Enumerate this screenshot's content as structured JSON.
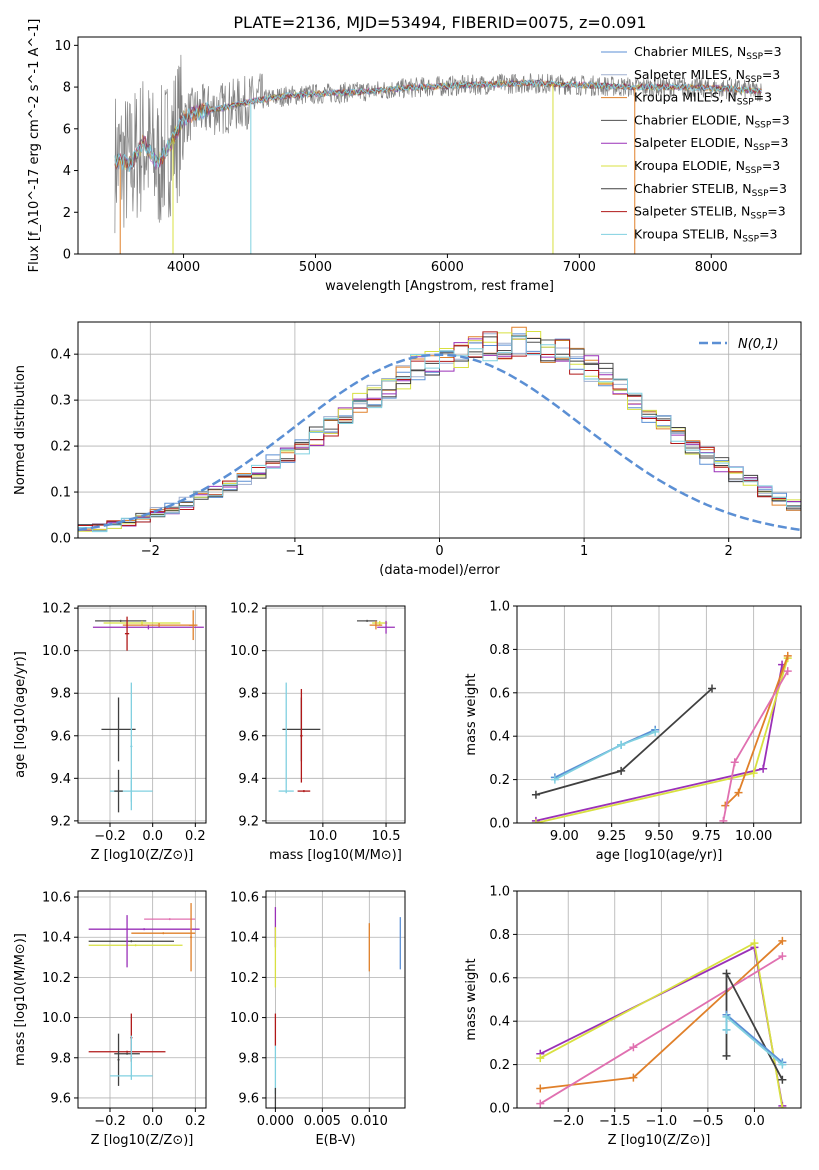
{
  "figure": {
    "title": "PLATE=2136, MJD=53494, FIBERID=0075, z=0.091"
  },
  "chart_data": [
    {
      "id": "spectrum",
      "type": "line",
      "xlabel": "wavelength [Angstrom, rest frame]",
      "ylabel": "Flux [f_λ10^-17 erg cm^-2 s^-1 A^-1]",
      "xlim": [
        3200,
        8680
      ],
      "ylim": [
        0,
        10.4
      ],
      "xticks": [
        4000,
        5000,
        6000,
        7000,
        8000
      ],
      "yticks": [
        0,
        2,
        4,
        6,
        8,
        10
      ],
      "grid": false,
      "legend_position": "right",
      "data_profile": {
        "x": [
          3480,
          3600,
          3700,
          3800,
          3900,
          4000,
          4100,
          4300,
          4500,
          4800,
          5100,
          5400,
          5800,
          6200,
          6600,
          7000,
          7400,
          7800,
          8200,
          8380
        ],
        "y": [
          4.5,
          4.3,
          5.4,
          4.3,
          5.3,
          6.5,
          6.8,
          7.0,
          7.3,
          7.6,
          7.7,
          7.8,
          8.0,
          8.1,
          8.2,
          8.1,
          8.0,
          8.0,
          7.9,
          7.8
        ]
      },
      "series": [
        {
          "name": "Chabrier MILES",
          "sub": "SSP",
          "suffix": "=3",
          "color": "#5b8fd4"
        },
        {
          "name": "Salpeter MILES",
          "sub": "SSP",
          "suffix": "=3",
          "color": "#a0b0d0"
        },
        {
          "name": "Kroupa MILES",
          "sub": "SSP",
          "suffix": "=3",
          "color": "#e0802a"
        },
        {
          "name": "Chabrier ELODIE",
          "sub": "SSP",
          "suffix": "=3",
          "color": "#505050"
        },
        {
          "name": "Salpeter ELODIE",
          "sub": "SSP",
          "suffix": "=3",
          "color": "#9a30b8"
        },
        {
          "name": "Kroupa ELODIE",
          "sub": "SSP",
          "suffix": "=3",
          "color": "#d8e040"
        },
        {
          "name": "Chabrier STELIB",
          "sub": "SSP",
          "suffix": "=3",
          "color": "#404040"
        },
        {
          "name": "Salpeter STELIB",
          "sub": "SSP",
          "suffix": "=3",
          "color": "#b01818"
        },
        {
          "name": "Kroupa STELIB",
          "sub": "SSP",
          "suffix": "=3",
          "color": "#80d0e0"
        }
      ],
      "spikes": [
        {
          "x": 3520,
          "color": "#e0802a"
        },
        {
          "x": 3920,
          "color": "#d8e040"
        },
        {
          "x": 4510,
          "color": "#80d0e0"
        },
        {
          "x": 6800,
          "color": "#d8e040"
        },
        {
          "x": 7420,
          "color": "#e0802a"
        }
      ]
    },
    {
      "id": "residuals",
      "type": "histogram",
      "xlabel": "(data-model)/error",
      "ylabel": "Normed distribution",
      "xlim": [
        -2.5,
        2.5
      ],
      "ylim": [
        0,
        0.47
      ],
      "xticks": [
        -2,
        -1,
        0,
        1,
        2
      ],
      "yticks": [
        0.0,
        0.1,
        0.2,
        0.3,
        0.4
      ],
      "grid": true,
      "legend": "N(0,1)",
      "legend_position": "top-right",
      "reference_curve": {
        "type": "normal",
        "mean": 0,
        "sigma": 1,
        "color": "#5b8fd4",
        "style": "dashed"
      },
      "bin_edges_start": -2.6,
      "bin_width": 0.1,
      "base_values": [
        0.016,
        0.02,
        0.024,
        0.03,
        0.036,
        0.045,
        0.055,
        0.065,
        0.075,
        0.088,
        0.1,
        0.115,
        0.13,
        0.148,
        0.165,
        0.18,
        0.2,
        0.22,
        0.245,
        0.27,
        0.29,
        0.31,
        0.33,
        0.35,
        0.37,
        0.38,
        0.39,
        0.4,
        0.41,
        0.415,
        0.42,
        0.425,
        0.42,
        0.41,
        0.4,
        0.385,
        0.37,
        0.35,
        0.33,
        0.3,
        0.27,
        0.245,
        0.22,
        0.2,
        0.18,
        0.16,
        0.14,
        0.12,
        0.1,
        0.085,
        0.07,
        0.06,
        0.05,
        0.04
      ]
    },
    {
      "id": "age_vs_z",
      "type": "scatter",
      "xlabel": "Z [log10(Z/Z⊙)]",
      "ylabel": "age [log10(age/yr)]",
      "xlim": [
        -0.35,
        0.25
      ],
      "ylim": [
        9.19,
        10.21
      ],
      "xticks": [
        -0.2,
        0.0,
        0.2
      ],
      "yticks": [
        9.2,
        9.4,
        9.6,
        9.8,
        10.0,
        10.2
      ],
      "grid": true,
      "points": [
        {
          "x": -0.15,
          "y": 10.14,
          "xerr": 0.12,
          "yerr": 0.005,
          "color": "#505050"
        },
        {
          "x": -0.05,
          "y": 10.13,
          "xerr": 0.18,
          "yerr": 0.01,
          "color": "#d8e040"
        },
        {
          "x": 0.03,
          "y": 10.12,
          "xerr": 0.17,
          "yerr": 0.01,
          "color": "#e0802a"
        },
        {
          "x": -0.02,
          "y": 10.11,
          "xerr": 0.26,
          "yerr": 0.01,
          "color": "#9a30b8"
        },
        {
          "x": 0.19,
          "y": 10.12,
          "xerr": 0.02,
          "yerr": 0.07,
          "color": "#e0802a"
        },
        {
          "x": -0.12,
          "y": 10.08,
          "xerr": 0.01,
          "yerr": 0.08,
          "color": "#b01818"
        },
        {
          "x": -0.16,
          "y": 9.63,
          "xerr": 0.08,
          "yerr": 0.15,
          "color": "#404040"
        },
        {
          "x": -0.1,
          "y": 9.34,
          "xerr": 0.1,
          "yerr": 0.05,
          "color": "#80d0e0"
        },
        {
          "x": -0.16,
          "y": 9.34,
          "xerr": 0.02,
          "yerr": 0.1,
          "color": "#404040"
        },
        {
          "x": -0.1,
          "y": 9.55,
          "xerr": 0.005,
          "yerr": 0.3,
          "color": "#80d0e0"
        }
      ]
    },
    {
      "id": "age_vs_mass",
      "type": "scatter",
      "xlabel": "mass [log10(M/M⊙)]",
      "ylabel": "",
      "xlim": [
        9.55,
        10.65
      ],
      "ylim": [
        9.19,
        10.21
      ],
      "xticks": [
        10.0,
        10.5
      ],
      "yticks": [
        9.2,
        9.4,
        9.6,
        9.8,
        10.0,
        10.2
      ],
      "grid": true,
      "points": [
        {
          "x": 10.35,
          "y": 10.14,
          "xerr": 0.08,
          "yerr": 0.005,
          "color": "#505050"
        },
        {
          "x": 10.45,
          "y": 10.13,
          "xerr": 0.06,
          "yerr": 0.01,
          "color": "#d8e040"
        },
        {
          "x": 10.42,
          "y": 10.12,
          "xerr": 0.05,
          "yerr": 0.02,
          "color": "#e0802a"
        },
        {
          "x": 10.5,
          "y": 10.11,
          "xerr": 0.07,
          "yerr": 0.03,
          "color": "#9a30b8"
        },
        {
          "x": 9.83,
          "y": 9.63,
          "xerr": 0.15,
          "yerr": 0.15,
          "color": "#404040"
        },
        {
          "x": 9.83,
          "y": 9.6,
          "xerr": 0.01,
          "yerr": 0.22,
          "color": "#b01818"
        },
        {
          "x": 9.71,
          "y": 9.34,
          "xerr": 0.06,
          "yerr": 0.01,
          "color": "#80d0e0"
        },
        {
          "x": 9.71,
          "y": 9.6,
          "xerr": 0.005,
          "yerr": 0.25,
          "color": "#80d0e0"
        },
        {
          "x": 9.85,
          "y": 9.34,
          "xerr": 0.05,
          "yerr": 0.005,
          "color": "#b01818"
        }
      ]
    },
    {
      "id": "weight_vs_age",
      "type": "line",
      "xlabel": "age [log10(age/yr)]",
      "ylabel": "mass weight",
      "xlim": [
        8.75,
        10.25
      ],
      "ylim": [
        0,
        1.0
      ],
      "xticks": [
        9.0,
        9.25,
        9.5,
        9.75,
        10.0
      ],
      "yticks": [
        0.0,
        0.2,
        0.4,
        0.6,
        0.8,
        1.0
      ],
      "grid": true,
      "series": [
        {
          "color": "#5b8fd4",
          "x": [
            8.95,
            9.3,
            9.48
          ],
          "y": [
            0.21,
            0.36,
            0.43
          ]
        },
        {
          "color": "#80d0e0",
          "x": [
            8.95,
            9.3,
            9.48
          ],
          "y": [
            0.2,
            0.36,
            0.42
          ]
        },
        {
          "color": "#404040",
          "x": [
            8.85,
            9.3,
            9.78
          ],
          "y": [
            0.13,
            0.24,
            0.62
          ]
        },
        {
          "color": "#9a30b8",
          "x": [
            8.85,
            10.05,
            10.15
          ],
          "y": [
            0.01,
            0.25,
            0.73
          ]
        },
        {
          "color": "#d8e040",
          "x": [
            8.85,
            10.0,
            10.18
          ],
          "y": [
            0.0,
            0.23,
            0.76
          ]
        },
        {
          "color": "#e0802a",
          "x": [
            9.85,
            9.92,
            10.18
          ],
          "y": [
            0.08,
            0.14,
            0.77
          ]
        },
        {
          "color": "#e070b0",
          "x": [
            9.84,
            9.9,
            10.18
          ],
          "y": [
            0.01,
            0.28,
            0.7
          ]
        }
      ]
    },
    {
      "id": "mass_vs_z",
      "type": "scatter",
      "xlabel": "Z [log10(Z/Z⊙)]",
      "ylabel": "mass [log10(M/M⊙)]",
      "xlim": [
        -0.35,
        0.25
      ],
      "ylim": [
        9.55,
        10.63
      ],
      "xticks": [
        -0.2,
        0.0,
        0.2
      ],
      "yticks": [
        9.6,
        9.8,
        10.0,
        10.2,
        10.4,
        10.6
      ],
      "grid": true,
      "points": [
        {
          "x": -0.04,
          "y": 10.44,
          "xerr": 0.26,
          "yerr": 0.005,
          "color": "#9a30b8"
        },
        {
          "x": 0.08,
          "y": 10.49,
          "xerr": 0.12,
          "yerr": 0.005,
          "color": "#e070b0"
        },
        {
          "x": 0.05,
          "y": 10.42,
          "xerr": 0.15,
          "yerr": 0.005,
          "color": "#e0802a"
        },
        {
          "x": -0.1,
          "y": 10.38,
          "xerr": 0.2,
          "yerr": 0.005,
          "color": "#404040"
        },
        {
          "x": -0.08,
          "y": 10.36,
          "xerr": 0.22,
          "yerr": 0.005,
          "color": "#d8e040"
        },
        {
          "x": -0.12,
          "y": 10.38,
          "xerr": 0.005,
          "yerr": 0.13,
          "color": "#9a30b8"
        },
        {
          "x": 0.18,
          "y": 10.4,
          "xerr": 0.005,
          "yerr": 0.17,
          "color": "#e0802a"
        },
        {
          "x": -0.12,
          "y": 9.83,
          "xerr": 0.18,
          "yerr": 0.005,
          "color": "#b01818"
        },
        {
          "x": -0.12,
          "y": 9.82,
          "xerr": 0.06,
          "yerr": 0.005,
          "color": "#404040"
        },
        {
          "x": -0.1,
          "y": 9.9,
          "xerr": 0.005,
          "yerr": 0.12,
          "color": "#b01818"
        },
        {
          "x": -0.16,
          "y": 9.79,
          "xerr": 0.005,
          "yerr": 0.13,
          "color": "#404040"
        },
        {
          "x": -0.1,
          "y": 9.71,
          "xerr": 0.1,
          "yerr": 0.005,
          "color": "#80d0e0"
        },
        {
          "x": -0.1,
          "y": 9.8,
          "xerr": 0.005,
          "yerr": 0.11,
          "color": "#80d0e0"
        }
      ]
    },
    {
      "id": "mass_vs_ebv",
      "type": "scatter",
      "xlabel": "E(B-V)",
      "ylabel": "",
      "xlim": [
        -0.001,
        0.0138
      ],
      "ylim": [
        9.55,
        10.63
      ],
      "xticks": [
        0.0,
        0.005,
        0.01
      ],
      "yticks": [
        9.6,
        9.8,
        10.0,
        10.2,
        10.4,
        10.6
      ],
      "grid": true,
      "points": [
        {
          "x": 0.0,
          "y": 10.45,
          "xerr": 0,
          "yerr": 0.1,
          "color": "#9a30b8"
        },
        {
          "x": 0.0,
          "y": 10.3,
          "xerr": 0,
          "yerr": 0.15,
          "color": "#d8e040"
        },
        {
          "x": 0.01,
          "y": 10.35,
          "xerr": 0,
          "yerr": 0.12,
          "color": "#e0802a"
        },
        {
          "x": 0.0133,
          "y": 10.37,
          "xerr": 0,
          "yerr": 0.13,
          "color": "#5b8fd4"
        },
        {
          "x": 0.0,
          "y": 9.94,
          "xerr": 0,
          "yerr": 0.08,
          "color": "#b01818"
        },
        {
          "x": 0.0,
          "y": 9.74,
          "xerr": 0,
          "yerr": 0.12,
          "color": "#80d0e0"
        },
        {
          "x": 0.0,
          "y": 9.6,
          "xerr": 0,
          "yerr": 0.05,
          "color": "#404040"
        }
      ]
    },
    {
      "id": "weight_vs_z",
      "type": "line",
      "xlabel": "Z [log10(Z/Z⊙)]",
      "ylabel": "mass weight",
      "xlim": [
        -2.55,
        0.5
      ],
      "ylim": [
        0,
        1.0
      ],
      "xticks": [
        -2.0,
        -1.5,
        -1.0,
        -0.5,
        0.0
      ],
      "yticks": [
        0.0,
        0.2,
        0.4,
        0.6,
        0.8,
        1.0
      ],
      "grid": true,
      "series": [
        {
          "color": "#9a30b8",
          "x": [
            -2.3,
            0.0,
            0.3
          ],
          "y": [
            0.25,
            0.74,
            0.01
          ]
        },
        {
          "color": "#d8e040",
          "x": [
            -2.3,
            0.0,
            0.3
          ],
          "y": [
            0.23,
            0.76,
            0.0
          ]
        },
        {
          "color": "#e0802a",
          "x": [
            -2.3,
            -1.3,
            0.3
          ],
          "y": [
            0.09,
            0.14,
            0.77
          ]
        },
        {
          "color": "#e070b0",
          "x": [
            -2.3,
            -1.3,
            0.3
          ],
          "y": [
            0.02,
            0.28,
            0.7
          ]
        },
        {
          "color": "#404040",
          "x": [
            -0.3,
            -0.3,
            0.3
          ],
          "y": [
            0.24,
            0.62,
            0.13
          ]
        },
        {
          "color": "#5b8fd4",
          "x": [
            -0.3,
            -0.3,
            0.3
          ],
          "y": [
            0.36,
            0.43,
            0.21
          ]
        },
        {
          "color": "#80d0e0",
          "x": [
            -0.3,
            -0.3,
            0.3
          ],
          "y": [
            0.36,
            0.42,
            0.2
          ]
        }
      ]
    }
  ]
}
